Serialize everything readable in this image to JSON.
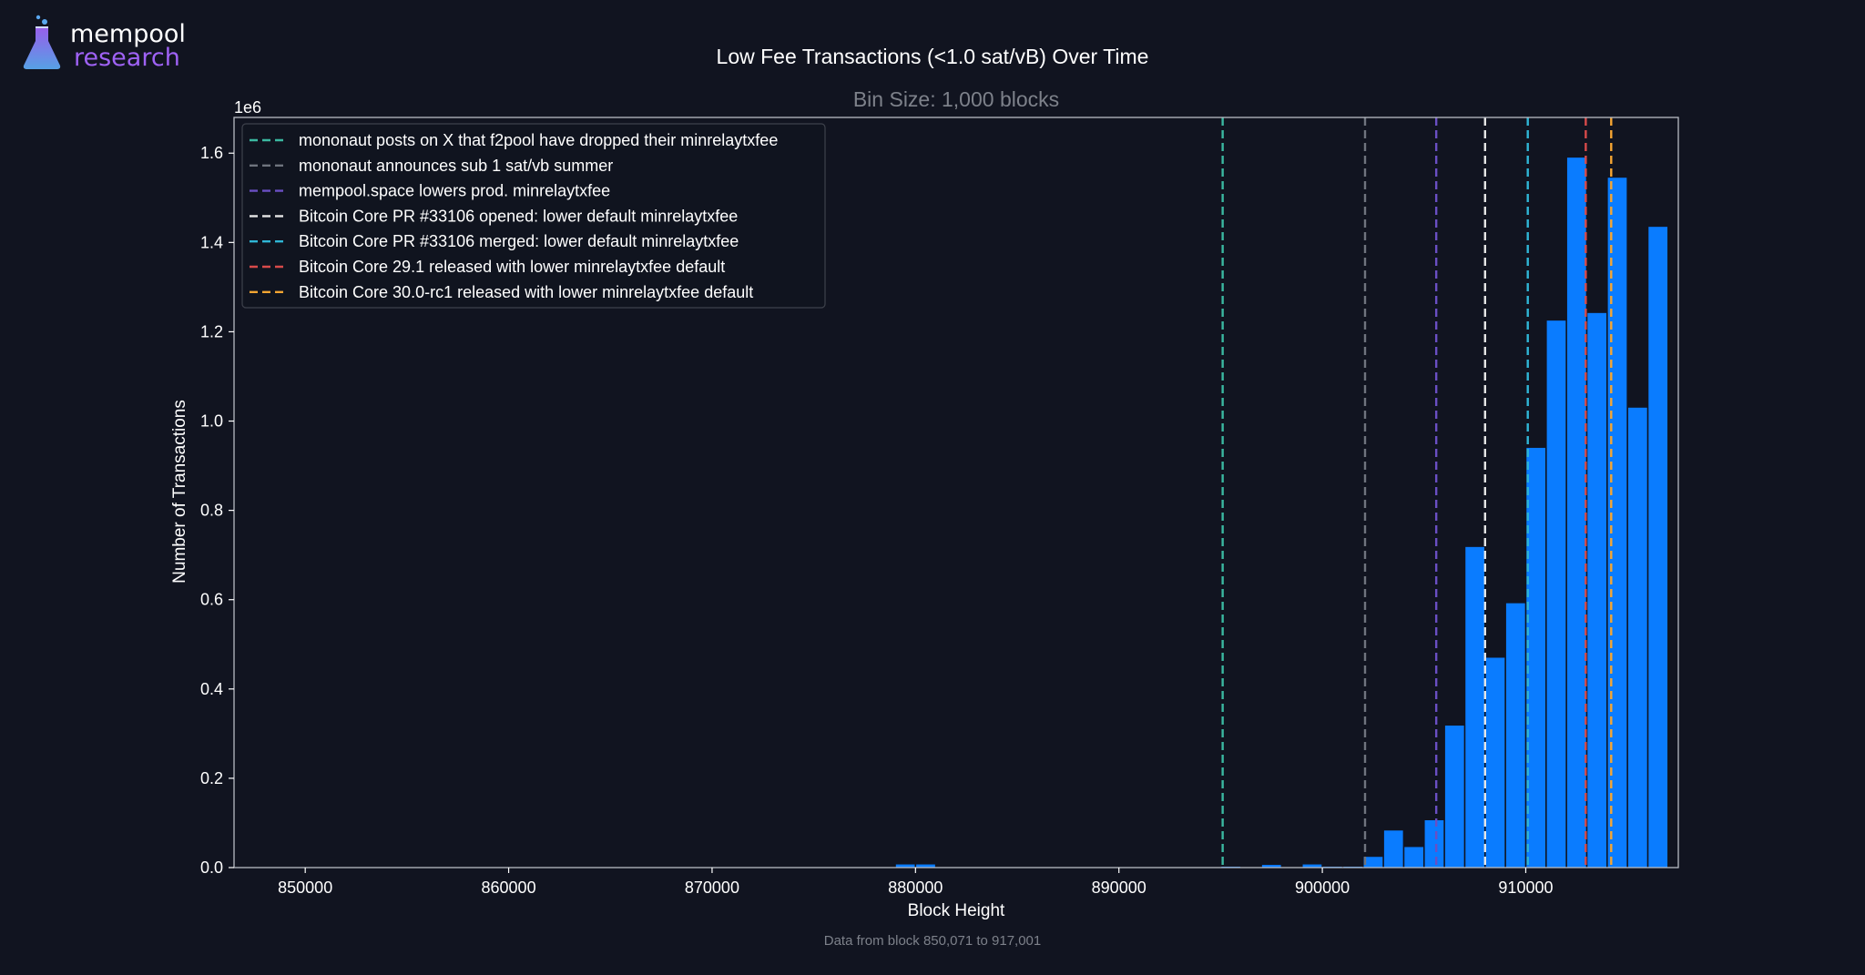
{
  "brand": {
    "name_line1": "mempool",
    "name_line2": "research",
    "accent_color": "#9f62f5"
  },
  "chart_data": {
    "type": "bar",
    "title": "Low Fee Transactions (<1.0 sat/vB) Over Time",
    "subtitle": "Bin Size: 1,000 blocks",
    "xlabel": "Block Height",
    "ylabel": "Number of Transactions",
    "y_scale_label": "1e6",
    "footnote": "Data from block 850,071 to 917,001",
    "bin_size": 1000,
    "xlim": [
      846500,
      917500
    ],
    "ylim": [
      0,
      1.68
    ],
    "y_multiplier": 1000000,
    "x_ticks": [
      850000,
      860000,
      870000,
      880000,
      890000,
      900000,
      910000
    ],
    "x_tick_labels": [
      "850000",
      "860000",
      "870000",
      "880000",
      "890000",
      "900000",
      "910000"
    ],
    "y_ticks": [
      0,
      0.2,
      0.4,
      0.6,
      0.8,
      1.0,
      1.2,
      1.4,
      1.6
    ],
    "y_tick_labels": [
      "0.0",
      "0.2",
      "0.4",
      "0.6",
      "0.8",
      "1.0",
      "1.2",
      "1.4",
      "1.6"
    ],
    "bar_color": "#0a7cff",
    "bars": [
      {
        "x": 879000,
        "y": 0.007
      },
      {
        "x": 880000,
        "y": 0.007
      },
      {
        "x": 895000,
        "y": 0.002
      },
      {
        "x": 897000,
        "y": 0.006
      },
      {
        "x": 899000,
        "y": 0.007
      },
      {
        "x": 900000,
        "y": 0.002
      },
      {
        "x": 901000,
        "y": 0.002
      },
      {
        "x": 902000,
        "y": 0.024
      },
      {
        "x": 903000,
        "y": 0.083
      },
      {
        "x": 904000,
        "y": 0.046
      },
      {
        "x": 905000,
        "y": 0.106
      },
      {
        "x": 906000,
        "y": 0.318
      },
      {
        "x": 907000,
        "y": 0.718
      },
      {
        "x": 908000,
        "y": 0.47
      },
      {
        "x": 909000,
        "y": 0.592
      },
      {
        "x": 910000,
        "y": 0.94
      },
      {
        "x": 911000,
        "y": 1.225
      },
      {
        "x": 912000,
        "y": 1.59
      },
      {
        "x": 913000,
        "y": 1.242
      },
      {
        "x": 914000,
        "y": 1.545
      },
      {
        "x": 915000,
        "y": 1.03
      },
      {
        "x": 916000,
        "y": 1.435
      }
    ],
    "events": [
      {
        "x": 895100,
        "color": "#3bb8a0",
        "label": "mononaut posts on X that f2pool have dropped their minrelaytxfee"
      },
      {
        "x": 902100,
        "color": "#6f747e",
        "label": "mononaut announces sub 1 sat/vb summer"
      },
      {
        "x": 905600,
        "color": "#6a4fc4",
        "label": "mempool.space lowers prod. minrelaytxfee"
      },
      {
        "x": 908000,
        "color": "#e6e6e6",
        "label": "Bitcoin Core PR #33106 opened: lower default minrelaytxfee"
      },
      {
        "x": 910100,
        "color": "#2fb6d6",
        "label": "Bitcoin Core PR #33106 merged: lower default minrelaytxfee"
      },
      {
        "x": 912950,
        "color": "#d84a4a",
        "label": "Bitcoin Core 29.1 released with lower minrelaytxfee default"
      },
      {
        "x": 914200,
        "color": "#f5a532",
        "label": "Bitcoin Core 30.0-rc1 released with lower minrelaytxfee default"
      }
    ],
    "legend_position": "upper-left",
    "grid": false
  }
}
